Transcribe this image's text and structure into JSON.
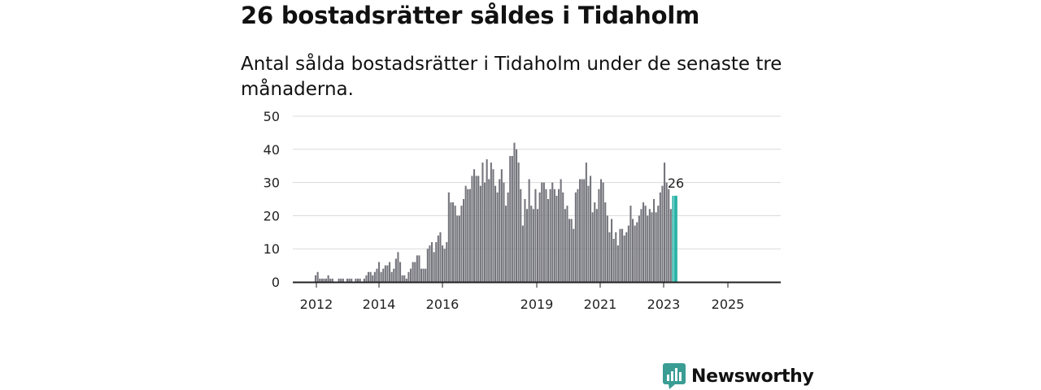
{
  "header": {
    "title": "26 bostadsrätter såldes i Tidaholm",
    "subtitle": "Antal sålda bostadsrätter i Tidaholm under de senaste tre månaderna."
  },
  "brand": {
    "name": "Newsworthy",
    "color": "#3a9d94"
  },
  "colors": {
    "bar": "#75757d",
    "highlight": "#2bb3a6",
    "grid": "#d9d9d9",
    "axis": "#222222"
  },
  "chart_data": {
    "type": "bar",
    "title": "Antal sålda bostadsrätter i Tidaholm under de senaste tre månaderna.",
    "xlabel": "",
    "ylabel": "",
    "ylim": [
      0,
      50
    ],
    "yticks": [
      0,
      10,
      20,
      30,
      40,
      50
    ],
    "xticks": [
      "2012",
      "2014",
      "2016",
      "2019",
      "2021",
      "2023",
      "2025"
    ],
    "last_value_label": "26",
    "values": [
      2,
      3,
      1,
      1,
      1,
      1,
      2,
      1,
      1,
      0,
      0,
      1,
      1,
      1,
      0,
      1,
      1,
      1,
      0,
      1,
      1,
      1,
      0,
      1,
      2,
      3,
      3,
      2,
      3,
      4,
      6,
      3,
      4,
      5,
      5,
      6,
      3,
      4,
      7,
      9,
      6,
      2,
      2,
      1,
      3,
      4,
      6,
      6,
      8,
      8,
      4,
      4,
      4,
      10,
      11,
      12,
      9,
      12,
      14,
      15,
      11,
      10,
      12,
      27,
      24,
      24,
      23,
      20,
      20,
      23,
      25,
      29,
      28,
      28,
      32,
      34,
      32,
      32,
      29,
      36,
      30,
      37,
      31,
      36,
      34,
      29,
      27,
      31,
      34,
      30,
      23,
      27,
      38,
      38,
      42,
      40,
      36,
      28,
      17,
      25,
      22,
      31,
      23,
      22,
      28,
      22,
      27,
      30,
      30,
      28,
      25,
      28,
      30,
      28,
      26,
      28,
      31,
      27,
      22,
      23,
      19,
      19,
      16,
      27,
      28,
      31,
      31,
      31,
      36,
      29,
      32,
      21,
      24,
      22,
      28,
      31,
      30,
      24,
      20,
      15,
      19,
      13,
      15,
      11,
      16,
      16,
      14,
      15,
      17,
      23,
      19,
      17,
      18,
      20,
      22,
      24,
      23,
      20,
      22,
      21,
      25,
      21,
      23,
      27,
      29,
      36,
      30,
      28,
      22,
      26,
      26
    ]
  }
}
